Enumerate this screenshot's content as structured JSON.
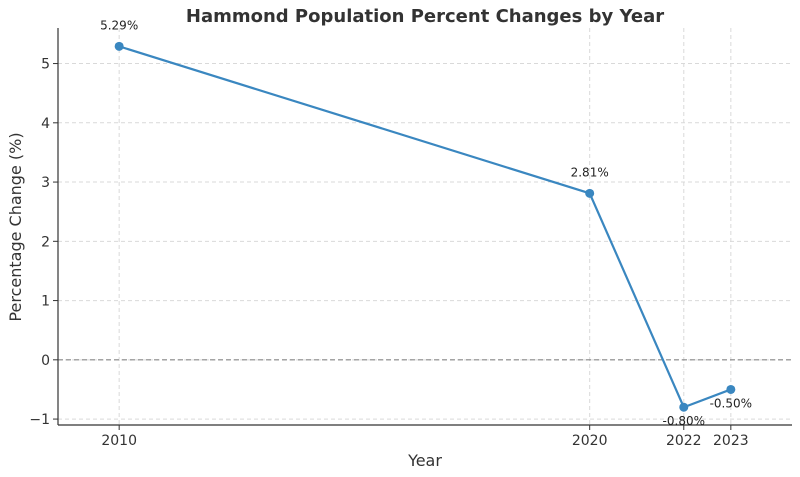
{
  "chart_data": {
    "type": "line",
    "title": "Hammond Population Percent Changes by Year",
    "xlabel": "Year",
    "ylabel": "Percentage Change (%)",
    "x": [
      2010,
      2020,
      2022,
      2023
    ],
    "series": [
      {
        "values": [
          5.29,
          2.81,
          -0.8,
          -0.5
        ],
        "data_labels": [
          "5.29%",
          "2.81%",
          "-0.80%",
          "-0.50%"
        ],
        "color": "#3a87c0"
      }
    ],
    "xticks": [
      2010,
      2020,
      2022,
      2023
    ],
    "yticks": [
      -1,
      0,
      1,
      2,
      3,
      4,
      5
    ],
    "ytick_labels": [
      "−1",
      "0",
      "1",
      "2",
      "3",
      "4",
      "5"
    ],
    "xlim": [
      2008.7,
      2024.3
    ],
    "ylim": [
      -1.1,
      5.6
    ],
    "grid": true,
    "zero_line": true,
    "marker": "circle"
  }
}
